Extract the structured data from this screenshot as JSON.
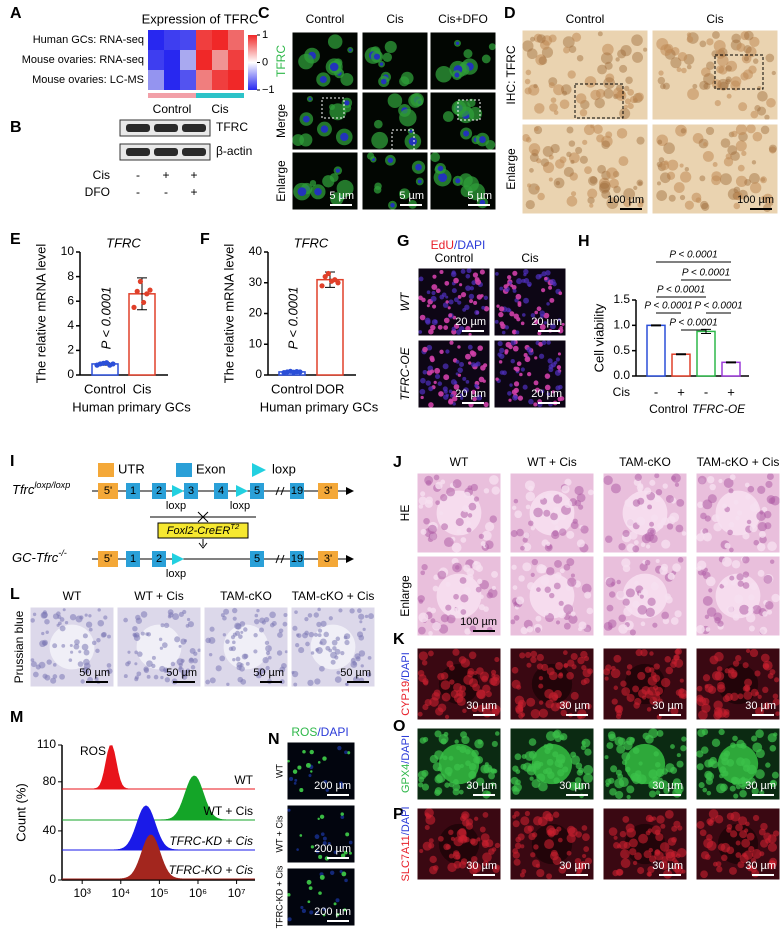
{
  "A": {
    "label": "A",
    "title": "Expression of TFRC",
    "rows": [
      "Human GCs: RNA-seq",
      "Mouse ovaries: RNA-seq",
      "Mouse ovaries: LC-MS"
    ],
    "groups": [
      "Control",
      "Cis"
    ],
    "group_colors": [
      "#f2a0a8",
      "#2cc3c8"
    ],
    "clim": [
      -1,
      1
    ],
    "colorbar_ticks": [
      1,
      0,
      {
        "value": -1,
        "label": "−1"
      }
    ],
    "values": [
      [
        -1,
        -0.9,
        -0.85,
        0.9,
        1,
        0.7
      ],
      [
        -0.9,
        -1,
        -0.4,
        1,
        0.5,
        0.9
      ],
      [
        -0.5,
        -1,
        -0.8,
        0.6,
        0.9,
        1
      ]
    ]
  },
  "B": {
    "label": "B",
    "bands": [
      "TFRC",
      "β-actin"
    ],
    "treatments": [
      {
        "name": "Cis",
        "signs": [
          "-",
          "+",
          "+"
        ]
      },
      {
        "name": "DFO",
        "signs": [
          "-",
          "-",
          "+"
        ]
      }
    ]
  },
  "C": {
    "label": "C",
    "columns": [
      "Control",
      "Cis",
      "Cis+DFO"
    ],
    "rows": [
      "TFRC",
      "Merge",
      "Enlarge"
    ],
    "scale_bars": [
      "5 µm",
      "5 µm",
      "5 µm"
    ]
  },
  "D": {
    "label": "D",
    "columns": [
      "Control",
      "Cis"
    ],
    "rows": [
      "IHC: TFRC",
      "Enlarge"
    ],
    "scale_bars": [
      "100 µm",
      "100 µm"
    ]
  },
  "E": {
    "label": "E",
    "type": "bar",
    "title": "TFRC",
    "ylabel": "The relative mRNA level",
    "xlabel": "Human primary GCs",
    "annotation": "P < 0.0001",
    "categories": [
      "Control",
      "Cis"
    ],
    "colors": [
      "#2b4fd8",
      "#e0402a"
    ],
    "values": [
      0.9,
      6.6
    ],
    "errors": [
      0.1,
      1.3
    ],
    "points": [
      [
        0.8,
        0.9,
        0.95,
        1.0,
        0.8,
        0.9
      ],
      [
        5.5,
        6.8,
        7.6,
        5.9,
        6.6,
        6.9
      ]
    ],
    "ylim": [
      0,
      10
    ],
    "yticks": [
      0,
      2,
      4,
      6,
      8,
      10
    ]
  },
  "F": {
    "label": "F",
    "type": "bar",
    "title": "TFRC",
    "ylabel": "The relative mRNA level",
    "xlabel": "Human primary GCs",
    "annotation": "P < 0.0001",
    "categories": [
      "Control",
      "DOR"
    ],
    "colors": [
      "#2b4fd8",
      "#e0402a"
    ],
    "values": [
      1,
      31
    ],
    "errors": [
      0.3,
      2.5
    ],
    "points": [
      [
        0.8,
        1,
        1.2,
        0.9,
        1.1,
        1
      ],
      [
        29,
        32,
        33,
        30.5,
        31,
        30
      ]
    ],
    "ylim": [
      0,
      40
    ],
    "yticks": [
      0,
      10,
      20,
      30,
      40
    ]
  },
  "G": {
    "label": "G",
    "stain": [
      "EdU",
      "/DAPI"
    ],
    "stain_colors": [
      "#e8202a",
      "#2a3ad8"
    ],
    "columns": [
      "Control",
      "Cis"
    ],
    "rows": [
      "WT",
      "TFRC-OE"
    ],
    "scale_bars": [
      "20 µm",
      "20 µm",
      "20 µm",
      "20 µm"
    ]
  },
  "H": {
    "label": "H",
    "type": "bar",
    "ylabel": "Cell viability",
    "row_label": "Cis",
    "categories": [
      "-",
      "+",
      "-",
      "+"
    ],
    "groups": [
      "Control",
      "TFRC-OE"
    ],
    "colors": [
      "#2b4fd8",
      "#e0402a",
      "#2fb84a",
      "#9b3bd8"
    ],
    "values": [
      1.0,
      0.43,
      0.88,
      0.27
    ],
    "errors": [
      0.01,
      0.01,
      0.04,
      0.01
    ],
    "ylim": [
      0,
      1.5
    ],
    "yticks": [
      {
        "value": 0,
        "label": "0.0"
      },
      0.5,
      {
        "value": 1,
        "label": "1.0"
      },
      1.5
    ],
    "comparisons": [
      "P < 0.0001",
      "P < 0.0001",
      "P < 0.0001",
      "P < 0.0001",
      "P < 0.0001",
      "P < 0.0001"
    ]
  },
  "I": {
    "label": "I",
    "legend": [
      "UTR",
      "Exon",
      "loxp"
    ],
    "alleles": [
      {
        "name": "Tfrc",
        "sup": "loxp/loxp",
        "elements": [
          "5'",
          "1",
          "2",
          "3",
          "4",
          "5",
          "19",
          "3'"
        ],
        "loxp_labels": [
          "loxp",
          "loxp"
        ]
      },
      {
        "name": "GC-Tfrc",
        "sup": "-/-",
        "elements": [
          "5'",
          "1",
          "2",
          "5",
          "19",
          "3'"
        ],
        "loxp_labels": [
          "loxp"
        ]
      }
    ],
    "cre": {
      "name": "Foxl2-CreER",
      "sup": "T2"
    }
  },
  "J": {
    "label": "J",
    "columns": [
      "WT",
      "WT + Cis",
      "TAM-cKO",
      "TAM-cKO + Cis"
    ],
    "rows": [
      "HE",
      "Enlarge"
    ],
    "scale_bars": [
      "100 µm"
    ]
  },
  "K": {
    "label": "K",
    "stain": [
      "CYP19",
      "/DAPI"
    ],
    "stain_colors": [
      "#e8202a",
      "#2a3ad8"
    ],
    "scale_bars": [
      "30 µm",
      "30 µm",
      "30 µm",
      "30 µm"
    ]
  },
  "O": {
    "label": "O",
    "stain": [
      "GPX4",
      "/DAPI"
    ],
    "stain_colors": [
      "#2fb84a",
      "#2a3ad8"
    ],
    "scale_bars": [
      "30 µm",
      "30 µm",
      "30 µm",
      "30 µm"
    ]
  },
  "P": {
    "label": "P",
    "stain": [
      "SLC7A11",
      "/DAPI"
    ],
    "stain_colors": [
      "#e8202a",
      "#2a3ad8"
    ],
    "scale_bars": [
      "30 µm",
      "30 µm",
      "30 µm",
      "30 µm"
    ]
  },
  "L": {
    "label": "L",
    "columns": [
      "WT",
      "WT + Cis",
      "TAM-cKO",
      "TAM-cKO + Cis"
    ],
    "rows": [
      "Prussian blue"
    ],
    "scale_bars": [
      "50 µm",
      "50 µm",
      "50 µm",
      "50 µm"
    ]
  },
  "M": {
    "label": "M",
    "type": "histogram-overlay",
    "ylabel": "Count (%)",
    "annotation": "ROS",
    "log_x": true,
    "xlim": [
      300,
      30000000
    ],
    "xticks": [
      {
        "value": 1000,
        "label": "10³"
      },
      {
        "value": 10000,
        "label": "10⁴"
      },
      {
        "value": 100000,
        "label": "10⁵"
      },
      {
        "value": 1000000,
        "label": "10⁶"
      },
      {
        "value": 10000000,
        "label": "10⁷"
      }
    ],
    "ylim": [
      0,
      110
    ],
    "yticks": [
      0,
      40,
      80,
      110
    ],
    "series": [
      {
        "name": "WT",
        "color": "#e8141b",
        "peak": 5600
      },
      {
        "name": "WT + Cis",
        "color": "#14a528",
        "peak": 800000
      },
      {
        "name": "TFRC-KD + Cis",
        "color": "#1a1ae8",
        "peak": 45000
      },
      {
        "name": "TFRC-KO + Cis",
        "color": "#a3261e",
        "peak": 60000
      }
    ]
  },
  "N": {
    "label": "N",
    "stain": [
      "ROS",
      "/DAPI"
    ],
    "stain_colors": [
      "#2fb84a",
      "#2a3ad8"
    ],
    "rows": [
      "WT",
      "WT + Cis",
      "TFRC-KD + Cis"
    ],
    "scale_bars": [
      "200 µm",
      "200 µm",
      "200 µm"
    ]
  }
}
